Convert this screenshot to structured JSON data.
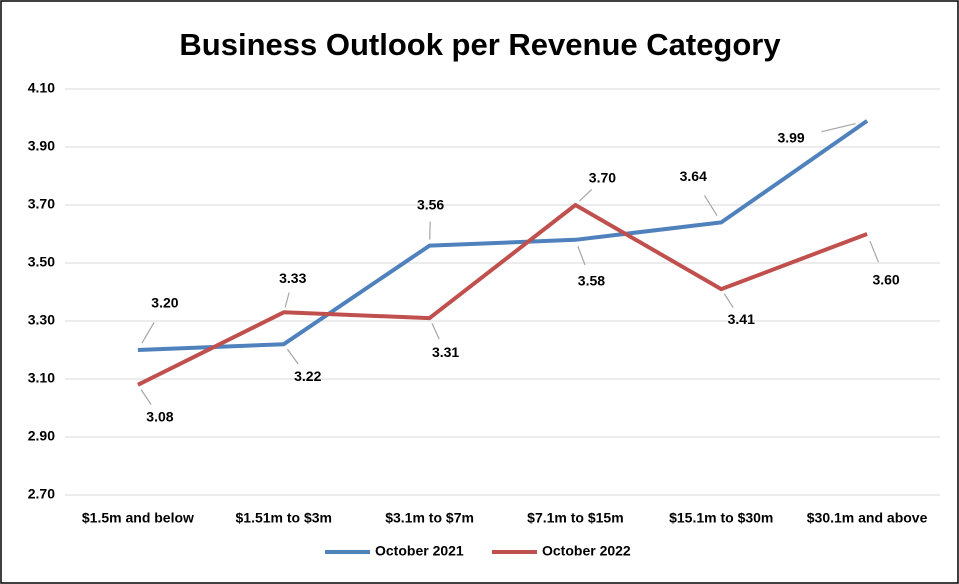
{
  "chart_data": {
    "type": "line",
    "title": "Business Outlook per Revenue Category",
    "categories": [
      "$1.5m and below",
      "$1.51m to $3m",
      "$3.1m to $7m",
      "$7.1m to $15m",
      "$15.1m to $30m",
      "$30.1m and above"
    ],
    "series": [
      {
        "name": "October 2021",
        "color": "#4f81bd",
        "values": [
          3.2,
          3.22,
          3.56,
          3.58,
          3.64,
          3.99
        ],
        "value_labels": [
          "3.20",
          "3.22",
          "3.56",
          "3.58",
          "3.64",
          "3.99"
        ]
      },
      {
        "name": "October 2022",
        "color": "#c0504d",
        "values": [
          3.08,
          3.33,
          3.31,
          3.7,
          3.41,
          3.6
        ],
        "value_labels": [
          "3.08",
          "3.33",
          "3.31",
          "3.70",
          "3.41",
          "3.60"
        ]
      }
    ],
    "ylim": [
      2.7,
      4.1
    ],
    "yticks": [
      {
        "value": 2.7,
        "label": "2.70"
      },
      {
        "value": 2.9,
        "label": "2.90"
      },
      {
        "value": 3.1,
        "label": "3.10"
      },
      {
        "value": 3.3,
        "label": "3.30"
      },
      {
        "value": 3.5,
        "label": "3.50"
      },
      {
        "value": 3.7,
        "label": "3.70"
      },
      {
        "value": 3.9,
        "label": "3.90"
      },
      {
        "value": 4.1,
        "label": "4.10"
      }
    ],
    "grid": true,
    "legend": "bottom"
  }
}
